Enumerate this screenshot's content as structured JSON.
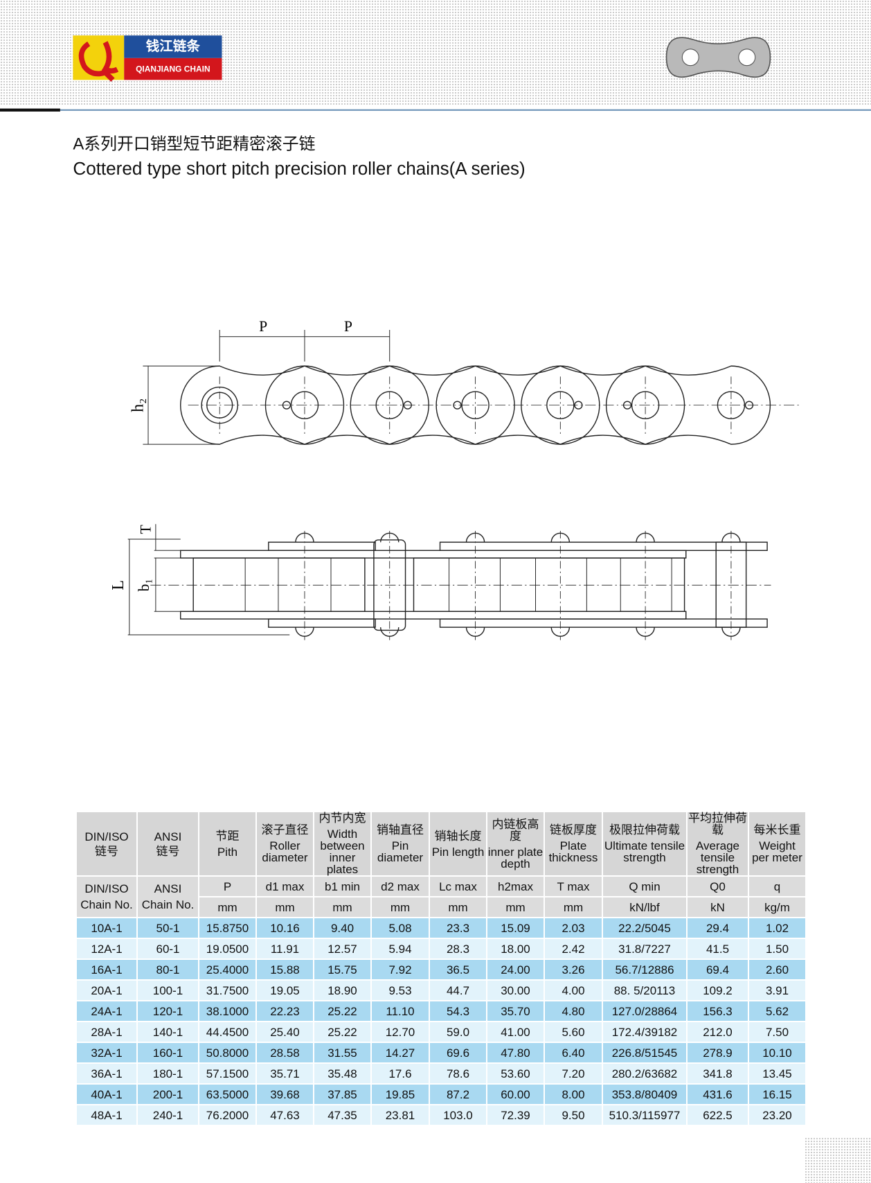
{
  "header": {
    "logo_cn": "钱江链条",
    "logo_en": "QIANJIANG CHAIN"
  },
  "title": {
    "cn": "A系列开口销型短节距精密滚子链",
    "en": "Cottered type short pitch precision roller chains(A series)"
  },
  "diagram": {
    "pitch_labels": [
      "P",
      "P"
    ],
    "h2": "h₂",
    "T": "T",
    "L": "L",
    "b1": "b₁"
  },
  "table": {
    "id_columns": [
      {
        "name": "DIN/ISO",
        "cn": "链号",
        "code": "DIN/ISO",
        "code2": "Chain No."
      },
      {
        "name": "ANSI",
        "cn": "链号",
        "code": "ANSI",
        "code2": "Chain No."
      }
    ],
    "columns": [
      {
        "cn": "节距",
        "en": "Pith",
        "symbol": "P",
        "unit": "mm"
      },
      {
        "cn": "滚子直径",
        "en": "Roller diameter",
        "symbol": "d1 max",
        "unit": "mm"
      },
      {
        "cn": "内节内宽",
        "en": "Width between inner plates",
        "symbol": "b1 min",
        "unit": "mm"
      },
      {
        "cn": "销轴直径",
        "en": "Pin diameter",
        "symbol": "d2 max",
        "unit": "mm"
      },
      {
        "cn": "销轴长度",
        "en": "Pin length",
        "symbol": "Lc max",
        "unit": "mm"
      },
      {
        "cn": "内链板高度",
        "en": "inner plate depth",
        "symbol": "h2max",
        "unit": "mm"
      },
      {
        "cn": "链板厚度",
        "en": "Plate thickness",
        "symbol": "T max",
        "unit": "mm"
      },
      {
        "cn": "极限拉伸荷载",
        "en": "Ultimate tensile strength",
        "symbol": "Q min",
        "unit": "kN/lbf"
      },
      {
        "cn": "平均拉伸荷载",
        "en": "Average tensile strength",
        "symbol": "Q0",
        "unit": "kN"
      },
      {
        "cn": "每米长重",
        "en": "Weight per meter",
        "symbol": "q",
        "unit": "kg/m"
      }
    ],
    "rows": [
      [
        "10A-1",
        "50-1",
        "15.8750",
        "10.16",
        "9.40",
        "5.08",
        "23.3",
        "15.09",
        "2.03",
        "22.2/5045",
        "29.4",
        "1.02"
      ],
      [
        "12A-1",
        "60-1",
        "19.0500",
        "11.91",
        "12.57",
        "5.94",
        "28.3",
        "18.00",
        "2.42",
        "31.8/7227",
        "41.5",
        "1.50"
      ],
      [
        "16A-1",
        "80-1",
        "25.4000",
        "15.88",
        "15.75",
        "7.92",
        "36.5",
        "24.00",
        "3.26",
        "56.7/12886",
        "69.4",
        "2.60"
      ],
      [
        "20A-1",
        "100-1",
        "31.7500",
        "19.05",
        "18.90",
        "9.53",
        "44.7",
        "30.00",
        "4.00",
        "88. 5/20113",
        "109.2",
        "3.91"
      ],
      [
        "24A-1",
        "120-1",
        "38.1000",
        "22.23",
        "25.22",
        "11.10",
        "54.3",
        "35.70",
        "4.80",
        "127.0/28864",
        "156.3",
        "5.62"
      ],
      [
        "28A-1",
        "140-1",
        "44.4500",
        "25.40",
        "25.22",
        "12.70",
        "59.0",
        "41.00",
        "5.60",
        "172.4/39182",
        "212.0",
        "7.50"
      ],
      [
        "32A-1",
        "160-1",
        "50.8000",
        "28.58",
        "31.55",
        "14.27",
        "69.6",
        "47.80",
        "6.40",
        "226.8/51545",
        "278.9",
        "10.10"
      ],
      [
        "36A-1",
        "180-1",
        "57.1500",
        "35.71",
        "35.48",
        "17.6",
        "78.6",
        "53.60",
        "7.20",
        "280.2/63682",
        "341.8",
        "13.45"
      ],
      [
        "40A-1",
        "200-1",
        "63.5000",
        "39.68",
        "37.85",
        "19.85",
        "87.2",
        "60.00",
        "8.00",
        "353.8/80409",
        "431.6",
        "16.15"
      ],
      [
        "48A-1",
        "240-1",
        "76.2000",
        "47.63",
        "47.35",
        "23.81",
        "103.0",
        "72.39",
        "9.50",
        "510.3/115977",
        "622.5",
        "23.20"
      ]
    ]
  }
}
